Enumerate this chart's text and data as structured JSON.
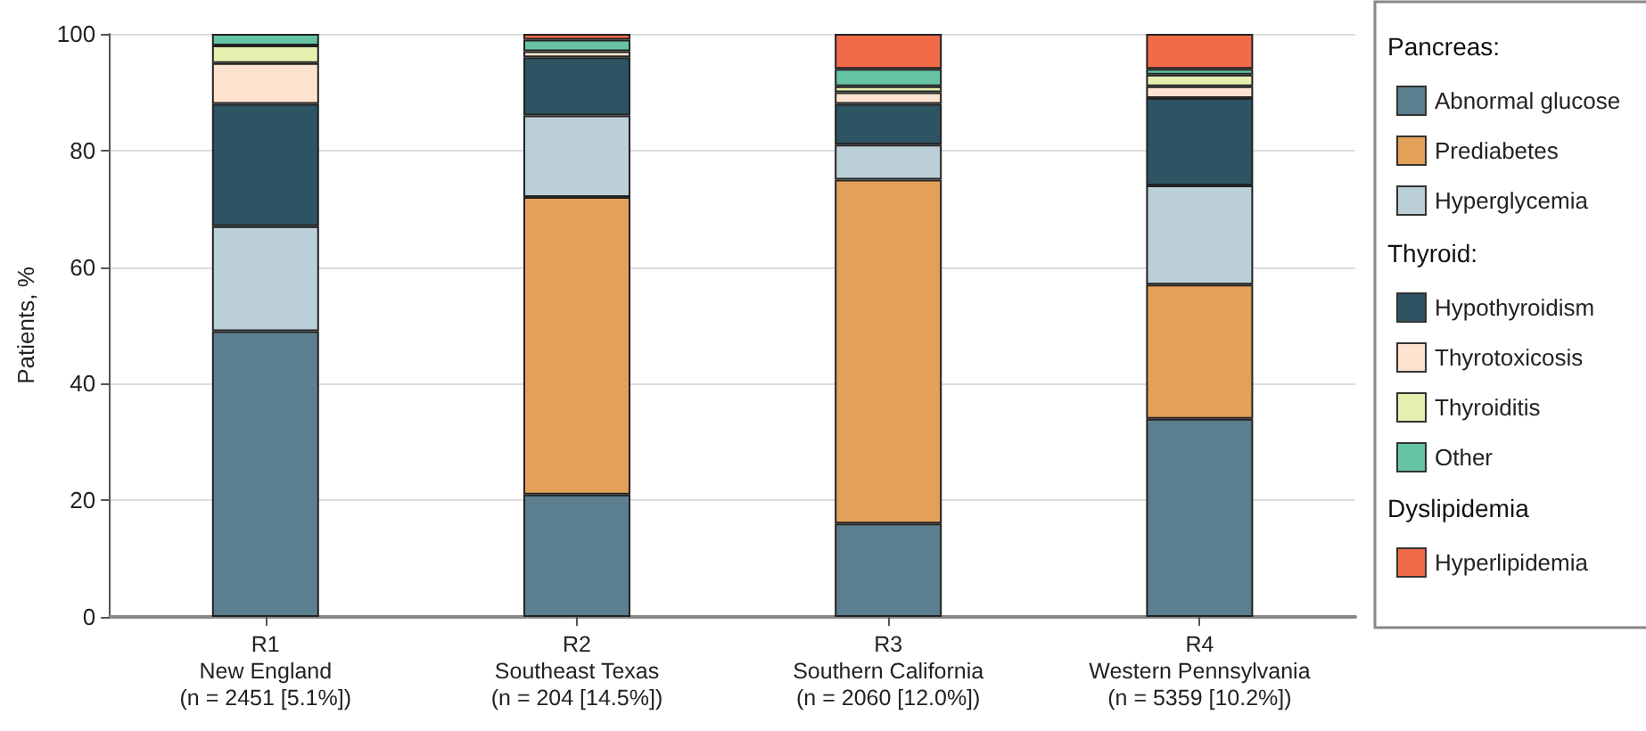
{
  "chart_data": {
    "type": "bar",
    "stacked": true,
    "ylabel": "Patients, %",
    "categories": [
      "R1\nNew England\n(n = 2451 [5.1%])",
      "R2\nSoutheast Texas\n(n = 204 [14.5%])",
      "R3\nSouthern California\n(n = 2060 [12.0%])",
      "R4\nWestern Pennsylvania\n(n = 5359 [10.2%])"
    ],
    "series": [
      {
        "name": "Abnormal glucose",
        "color": "#5b7f8e",
        "values": [
          49,
          21,
          16,
          34
        ]
      },
      {
        "name": "Prediabetes",
        "color": "#e4a059",
        "values": [
          0,
          51,
          59,
          23
        ]
      },
      {
        "name": "Hyperglycemia",
        "color": "#bbcfd8",
        "values": [
          18,
          14,
          6,
          17
        ]
      },
      {
        "name": "Hypothyroidism",
        "color": "#2d5462",
        "values": [
          21,
          10,
          7,
          15
        ]
      },
      {
        "name": "Thyrotoxicosis",
        "color": "#fde3cf",
        "values": [
          7,
          1,
          2,
          2
        ]
      },
      {
        "name": "Thyroiditis",
        "color": "#e6eeb0",
        "values": [
          3,
          0,
          1,
          2
        ]
      },
      {
        "name": "Other",
        "color": "#66c4a4",
        "values": [
          2,
          2,
          3,
          1
        ]
      },
      {
        "name": "Hyperlipidemia",
        "color": "#f26b48",
        "values": [
          0,
          1,
          6,
          6
        ]
      }
    ],
    "annotations": [
      "Pancreas:",
      "Thyroid:",
      "Dyslipidemia"
    ],
    "ylim": [
      0,
      100
    ],
    "yticks": [
      0,
      20,
      40,
      60,
      80,
      100
    ],
    "grid": "y",
    "legend": "right"
  }
}
